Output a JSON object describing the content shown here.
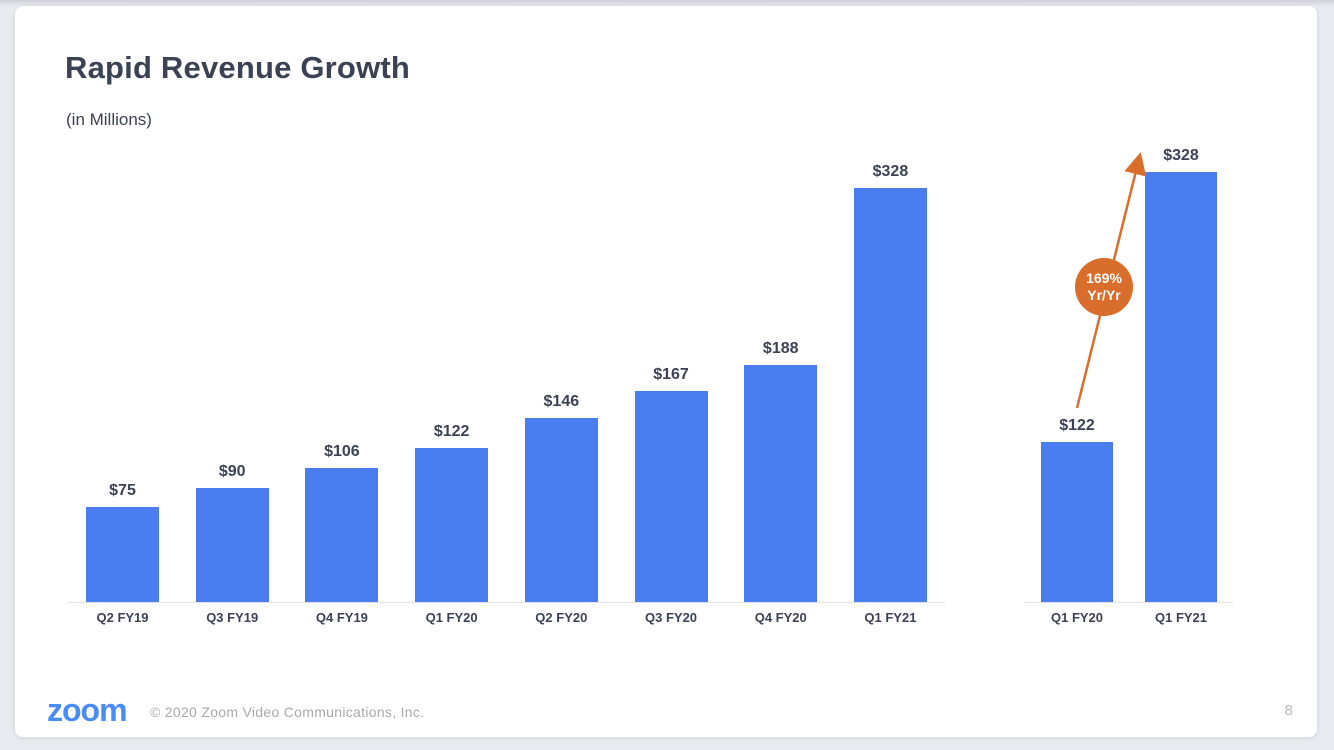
{
  "slide": {
    "title": "Rapid Revenue Growth",
    "subtitle": "(in Millions)"
  },
  "chart_data": [
    {
      "type": "bar",
      "title": "Rapid Revenue Growth",
      "subtitle": "(in Millions)",
      "categories": [
        "Q2 FY19",
        "Q3 FY19",
        "Q4 FY19",
        "Q1 FY20",
        "Q2 FY20",
        "Q3 FY20",
        "Q4 FY20",
        "Q1 FY21"
      ],
      "values": [
        75,
        90,
        106,
        122,
        146,
        167,
        188,
        328
      ],
      "value_labels": [
        "$75",
        "$90",
        "$106",
        "$122",
        "$146",
        "$167",
        "$188",
        "$328"
      ],
      "ylim": [
        0,
        350
      ],
      "grid": false,
      "legend": false,
      "bar_color": "#4a7df0"
    },
    {
      "type": "bar",
      "categories": [
        "Q1 FY20",
        "Q1 FY21"
      ],
      "values": [
        122,
        328
      ],
      "value_labels": [
        "$122",
        "$328"
      ],
      "annotation": "169% Yr/Yr",
      "ylim": [
        0,
        350
      ],
      "grid": false,
      "legend": false,
      "bar_color": "#4a7df0",
      "annotation_color": "#d96d2b"
    }
  ],
  "badge": {
    "line1": "169%",
    "line2": "Yr/Yr"
  },
  "colors": {
    "bar": "#4a7df0",
    "accent": "#d96d2b",
    "text": "#3b4254"
  },
  "footer": {
    "logo_text": "zoom",
    "copyright": "© 2020 Zoom Video Communications, Inc.",
    "page_number": "8"
  }
}
